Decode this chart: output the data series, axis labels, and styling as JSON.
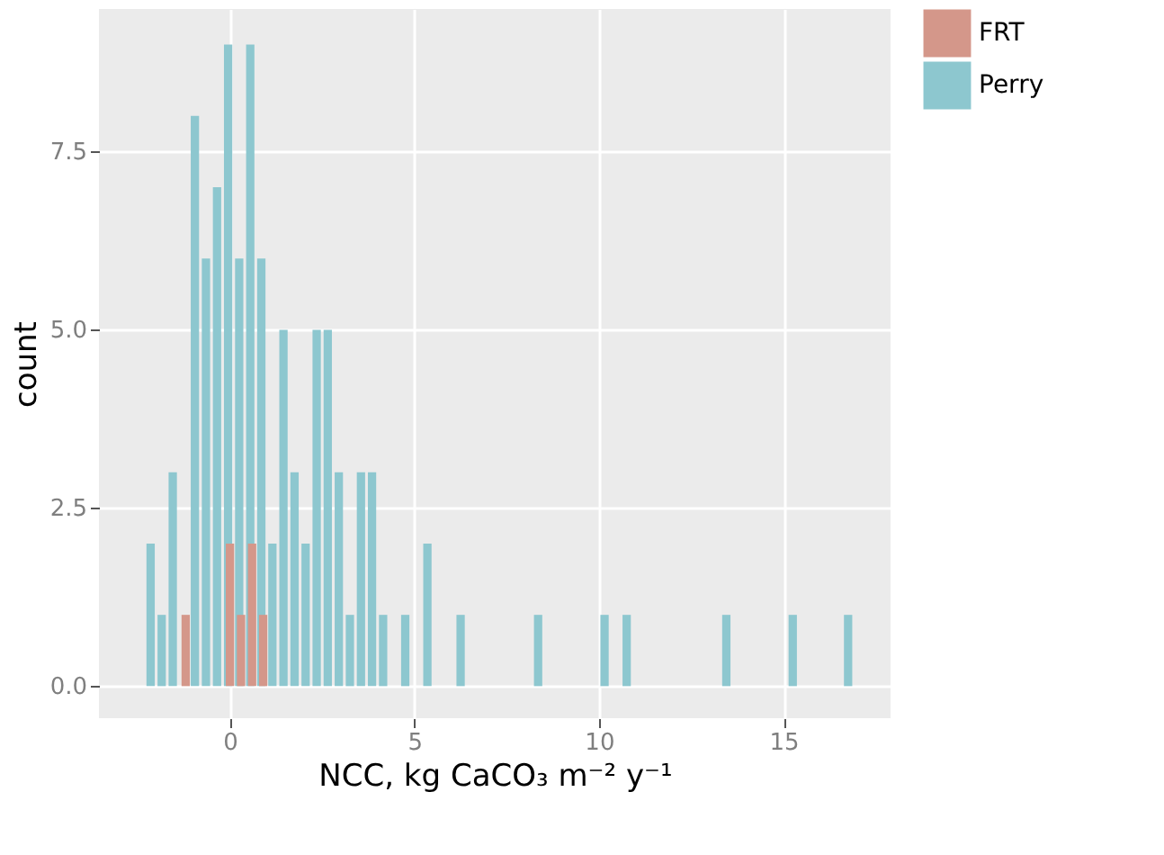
{
  "chart_data": {
    "type": "bar",
    "xlabel": "NCC, kg CaCO₃ m⁻² y⁻¹",
    "ylabel": "count",
    "series": [
      {
        "name": "FRT",
        "color": "#d4978a",
        "x": [
          -1.2,
          0.0,
          0.3,
          0.6,
          0.9
        ],
        "values": [
          1,
          2,
          1,
          2,
          1
        ]
      },
      {
        "name": "Perry",
        "color": "#8dc7cf",
        "x": [
          -2.15,
          -1.85,
          -1.55,
          -0.95,
          -0.65,
          -0.35,
          -0.05,
          0.25,
          0.55,
          0.85,
          1.15,
          1.45,
          1.75,
          2.05,
          2.35,
          2.65,
          2.95,
          3.25,
          3.55,
          3.85,
          4.15,
          4.75,
          5.35,
          6.25,
          8.35,
          10.15,
          10.75,
          13.45,
          15.25,
          16.75
        ],
        "values": [
          2,
          1,
          3,
          8,
          6,
          7,
          9,
          6,
          9,
          6,
          2,
          5,
          3,
          2,
          5,
          5,
          3,
          1,
          3,
          3,
          1,
          1,
          2,
          1,
          1,
          1,
          1,
          1,
          1,
          1
        ]
      }
    ],
    "xlim": [
      -3.55,
      17.9
    ],
    "ylim": [
      -0.45,
      9.5
    ],
    "xticks": [
      0,
      5,
      10,
      15
    ],
    "yticks": [
      {
        "value": 0,
        "label": "0.0"
      },
      {
        "value": 2.5,
        "label": "2.5"
      },
      {
        "value": 5,
        "label": "5.0"
      },
      {
        "value": 7.5,
        "label": "7.5"
      }
    ],
    "grid": true,
    "legend": "right"
  }
}
